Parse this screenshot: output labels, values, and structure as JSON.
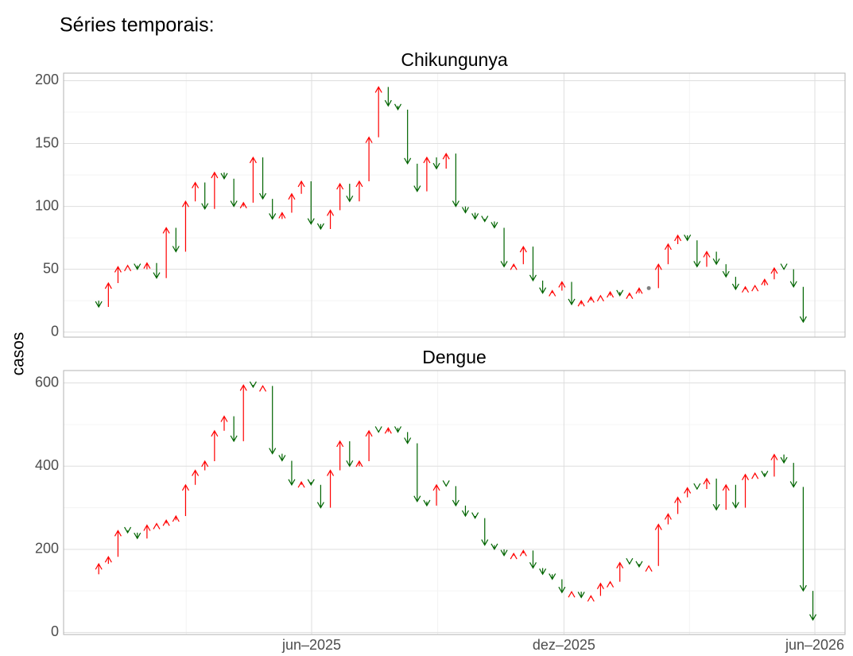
{
  "title": "Séries temporais:",
  "y_label": "casos",
  "chart_data": {
    "type": "arrow",
    "colors": {
      "up": "#ff0000",
      "down": "#006400",
      "flat": "#808080"
    },
    "x": [
      2024.9714,
      2024.9906,
      2025.0098,
      2025.0289,
      2025.0481,
      2025.0673,
      2025.0865,
      2025.1056,
      2025.1248,
      2025.144,
      2025.1632,
      2025.1824,
      2025.2015,
      2025.2207,
      2025.2399,
      2025.2591,
      2025.2782,
      2025.2974,
      2025.3166,
      2025.3358,
      2025.355,
      2025.3741,
      2025.3933,
      2025.4125,
      2025.4317,
      2025.4509,
      2025.47,
      2025.4892,
      2025.5084,
      2025.5276,
      2025.5467,
      2025.5659,
      2025.5851,
      2025.6043,
      2025.6235,
      2025.6426,
      2025.6618,
      2025.681,
      2025.7002,
      2025.7193,
      2025.7385,
      2025.7577,
      2025.7769,
      2025.7961,
      2025.8152,
      2025.8344,
      2025.8536,
      2025.8728,
      2025.8919,
      2025.9111,
      2025.9303,
      2025.9495,
      2025.9687,
      2025.9878,
      2026.007,
      2026.0262,
      2026.0454,
      2026.0645,
      2026.0837,
      2026.1029,
      2026.1221,
      2026.1413,
      2026.1604,
      2026.1796,
      2026.1988,
      2026.218,
      2026.2371,
      2026.2563,
      2026.2755,
      2026.2947,
      2026.3139,
      2026.333,
      2026.3522,
      2026.3714,
      2026.3906,
      2026.4098
    ],
    "xlim": [
      2024.9208,
      2026.4737
    ],
    "xticks": [
      {
        "value": 2025.4137,
        "label": "jun–2025"
      },
      {
        "value": 2025.9151,
        "label": "dez–2025"
      },
      {
        "value": 2026.4137,
        "label": "jun–2026"
      }
    ],
    "xminorticks": [
      2025.1644,
      2025.6644,
      2026.1644
    ],
    "panels": [
      {
        "title": "Chikungunya",
        "ylim": [
          -4,
          206
        ],
        "yticks": [
          0,
          50,
          100,
          150,
          200
        ],
        "yminorticks": [
          25,
          75,
          125,
          175
        ],
        "values": [
          25,
          20,
          39,
          52,
          53,
          50,
          55,
          43,
          83,
          64,
          104,
          119,
          98,
          127,
          122,
          100,
          103,
          139,
          106,
          90,
          95,
          110,
          120,
          86,
          82,
          97,
          118,
          104,
          120,
          155,
          195,
          180,
          177,
          134,
          112,
          139,
          130,
          142,
          100,
          95,
          90,
          88,
          83,
          52,
          54,
          68,
          41,
          31,
          33,
          40,
          22,
          25,
          28,
          29,
          32,
          29,
          31,
          35,
          35,
          54,
          70,
          77,
          73,
          52,
          64,
          54,
          44,
          34,
          36,
          37,
          42,
          51,
          50,
          36,
          8,
          null
        ]
      },
      {
        "title": "Dengue",
        "ylim": [
          -5,
          630
        ],
        "yticks": [
          0,
          200,
          400,
          600
        ],
        "yminorticks": [
          100,
          300,
          500
        ],
        "values": [
          140,
          165,
          182,
          245,
          240,
          226,
          258,
          262,
          270,
          280,
          355,
          390,
          412,
          485,
          520,
          460,
          595,
          590,
          593,
          430,
          413,
          355,
          362,
          355,
          300,
          390,
          460,
          400,
          412,
          485,
          482,
          492,
          482,
          455,
          315,
          305,
          355,
          352,
          305,
          280,
          275,
          210,
          200,
          185,
          190,
          197,
          155,
          140,
          128,
          96,
          98,
          84,
          88,
          118,
          122,
          168,
          165,
          158,
          160,
          260,
          285,
          325,
          348,
          345,
          370,
          295,
          355,
          300,
          380,
          383,
          375,
          428,
          408,
          350,
          100,
          30
        ]
      }
    ]
  }
}
